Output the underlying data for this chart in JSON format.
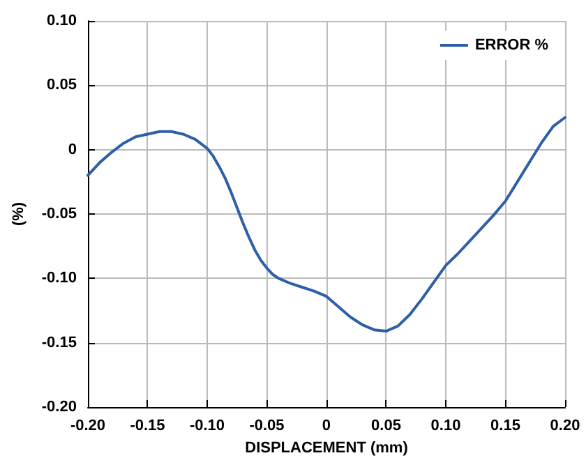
{
  "chart_data": {
    "type": "line",
    "xlabel": "DISPLACEMENT (mm)",
    "ylabel": "(%)",
    "series": [
      {
        "name": "ERROR %",
        "color": "#2e5fa8",
        "x": [
          -0.2,
          -0.19,
          -0.18,
          -0.17,
          -0.16,
          -0.15,
          -0.14,
          -0.13,
          -0.12,
          -0.11,
          -0.1,
          -0.095,
          -0.09,
          -0.085,
          -0.08,
          -0.075,
          -0.07,
          -0.065,
          -0.06,
          -0.055,
          -0.05,
          -0.045,
          -0.04,
          -0.03,
          -0.02,
          -0.01,
          0,
          0.01,
          0.02,
          0.03,
          0.04,
          0.05,
          0.06,
          0.07,
          0.08,
          0.09,
          0.1,
          0.11,
          0.12,
          0.13,
          0.14,
          0.15,
          0.16,
          0.17,
          0.18,
          0.19,
          0.2
        ],
        "values": [
          -0.02,
          -0.01,
          -0.002,
          0.005,
          0.01,
          0.012,
          0.014,
          0.014,
          0.012,
          0.008,
          0.001,
          -0.005,
          -0.013,
          -0.022,
          -0.033,
          -0.045,
          -0.057,
          -0.068,
          -0.078,
          -0.086,
          -0.092,
          -0.097,
          -0.1,
          -0.104,
          -0.107,
          -0.11,
          -0.114,
          -0.122,
          -0.13,
          -0.136,
          -0.14,
          -0.141,
          -0.137,
          -0.128,
          -0.116,
          -0.103,
          -0.09,
          -0.081,
          -0.071,
          -0.061,
          -0.051,
          -0.04,
          -0.025,
          -0.01,
          0.005,
          0.018,
          0.025
        ]
      }
    ],
    "xlim": [
      -0.2,
      0.2
    ],
    "xticks": [
      {
        "value": -0.2,
        "label": "-0.20"
      },
      -0.15,
      {
        "value": -0.1,
        "label": "-0.10"
      },
      -0.05,
      0,
      0.05,
      {
        "value": 0.1,
        "label": "0.10"
      },
      0.15,
      {
        "value": 0.2,
        "label": "0.20"
      }
    ],
    "ylim": [
      -0.2,
      0.1
    ],
    "yticks": [
      {
        "value": -0.2,
        "label": "-0.20"
      },
      -0.15,
      {
        "value": -0.1,
        "label": "-0.10"
      },
      -0.05,
      0,
      0.05,
      {
        "value": 0.1,
        "label": "0.10"
      }
    ],
    "grid": true,
    "legend": "top right",
    "marker": "none",
    "line_style": "solid"
  }
}
